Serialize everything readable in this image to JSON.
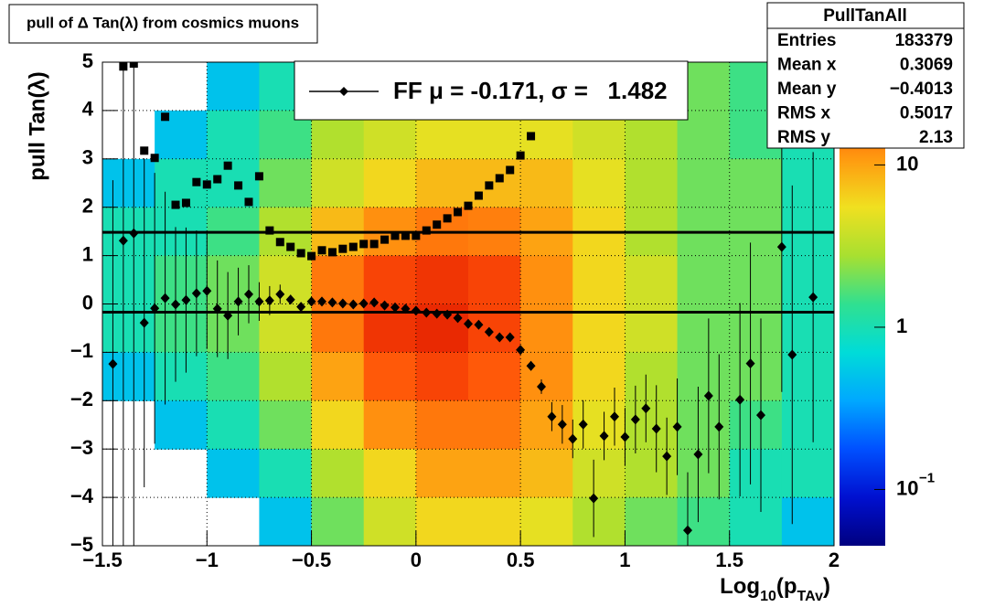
{
  "chart_data": {
    "type": "heatmap",
    "title": "pull of Δ Tan(λ) from cosmics muons",
    "ylabel": "pull Tan(λ)",
    "xlabel_parts": [
      {
        "text": "Log"
      },
      {
        "sub": "10"
      },
      {
        "text": "(p"
      },
      {
        "sub": "TAv"
      },
      {
        "text": ")"
      }
    ],
    "xlim": [
      -1.5,
      2
    ],
    "ylim": [
      -5,
      5
    ],
    "xticks": [
      {
        "value": -1.5,
        "label": "−1.5"
      },
      {
        "value": -1,
        "label": "−1"
      },
      {
        "value": -0.5,
        "label": "−0.5"
      },
      0,
      0.5,
      1,
      1.5,
      2
    ],
    "yticks": [
      {
        "value": -5,
        "label": "−5"
      },
      {
        "value": -4,
        "label": "−4"
      },
      {
        "value": -3,
        "label": "−3"
      },
      {
        "value": -2,
        "label": "−2"
      },
      {
        "value": -1,
        "label": "−1"
      },
      0,
      1,
      2,
      3,
      4,
      5
    ],
    "grid": true,
    "log_z": true,
    "zlim": [
      0.045,
      43
    ],
    "zticks": [
      {
        "value": 0.1,
        "label": "10",
        "exponent": "−1"
      },
      1,
      10
    ],
    "palette": [
      "#000080",
      "#0010d0",
      "#0050ff",
      "#00a8ff",
      "#00dcd8",
      "#30e090",
      "#a8e030",
      "#f0e020",
      "#ff9a10",
      "#ff5008",
      "#e01800"
    ],
    "xbins": [
      -1.5,
      -1.25,
      -1,
      -0.75,
      -0.5,
      -0.25,
      0,
      0.25,
      0.5,
      0.75,
      1,
      1.25,
      1.5,
      1.75,
      2
    ],
    "ybins": [
      5,
      4,
      3,
      2,
      1,
      0,
      -1,
      -2,
      -3,
      -4,
      -5
    ],
    "z": [
      [
        0,
        0,
        0.5,
        1,
        2,
        2,
        3,
        3,
        4,
        3,
        2,
        2,
        1.5,
        1
      ],
      [
        0,
        0.5,
        1,
        1.5,
        3,
        4,
        5,
        5,
        5,
        4,
        3,
        2,
        1.5,
        1
      ],
      [
        0.5,
        1,
        1,
        2,
        4,
        6,
        8,
        8,
        8,
        5,
        3,
        2,
        2,
        1
      ],
      [
        1,
        1,
        1.5,
        3,
        8,
        12,
        15,
        14,
        10,
        6,
        3,
        2,
        2,
        1
      ],
      [
        1,
        1.5,
        2,
        4,
        15,
        25,
        30,
        25,
        12,
        6,
        4,
        2,
        2,
        1
      ],
      [
        1,
        1.5,
        2,
        4,
        15,
        30,
        35,
        25,
        12,
        6,
        4,
        2,
        2,
        1
      ],
      [
        0.5,
        1,
        1.5,
        3,
        10,
        20,
        25,
        20,
        12,
        6,
        3,
        2,
        2,
        1
      ],
      [
        0,
        0.5,
        1,
        2,
        6,
        12,
        15,
        15,
        10,
        5,
        3,
        2,
        1.5,
        1
      ],
      [
        0,
        0,
        0.5,
        1,
        3,
        6,
        10,
        10,
        8,
        4,
        3,
        2,
        1,
        1
      ],
      [
        0,
        0,
        0,
        0.5,
        2,
        4,
        6,
        6,
        5,
        3,
        2,
        1.5,
        1,
        0.5
      ]
    ],
    "series": [
      {
        "name": "FF μ = -0.171, σ =   1.482",
        "marker": "diamond",
        "color": "#000000",
        "x": [
          -1.45,
          -1.4,
          -1.35,
          -1.3,
          -1.25,
          -1.2,
          -1.15,
          -1.1,
          -1.05,
          -1,
          -0.95,
          -0.9,
          -0.85,
          -0.8,
          -0.75,
          -0.7,
          -0.65,
          -0.6,
          -0.55,
          -0.5,
          -0.45,
          -0.4,
          -0.35,
          -0.3,
          -0.25,
          -0.2,
          -0.15,
          -0.1,
          -0.05,
          0,
          0.05,
          0.1,
          0.15,
          0.2,
          0.25,
          0.3,
          0.35,
          0.4,
          0.45,
          0.5,
          0.55,
          0.6,
          0.65,
          0.7,
          0.75,
          0.8,
          0.85,
          0.9,
          0.95,
          1,
          1.05,
          1.1,
          1.15,
          1.2,
          1.25,
          1.3,
          1.35,
          1.4,
          1.45,
          1.55,
          1.6,
          1.65,
          1.75,
          1.8,
          1.9
        ],
        "values": [
          -1.24,
          1.31,
          1.46,
          -0.39,
          -0.09,
          0.12,
          -0.01,
          0.08,
          0.22,
          0.27,
          -0.1,
          -0.24,
          0.05,
          0.2,
          0.05,
          0.07,
          0.2,
          0.09,
          -0.06,
          0.05,
          0.05,
          0.03,
          0.01,
          -0.01,
          0.01,
          0.03,
          -0.03,
          -0.07,
          -0.1,
          -0.14,
          -0.18,
          -0.2,
          -0.22,
          -0.29,
          -0.41,
          -0.43,
          -0.58,
          -0.69,
          -0.69,
          -0.95,
          -1.28,
          -1.71,
          -2.33,
          -2.49,
          -2.79,
          -2.49,
          -4.02,
          -2.73,
          -2.33,
          -2.75,
          -2.39,
          -2.16,
          -2.58,
          -3.15,
          -2.54,
          -4.68,
          -3.11,
          -1.9,
          -2.54,
          -1.98,
          -1.23,
          -2.3,
          1.18,
          -1.05,
          0.14
        ],
        "errors": [
          3.8,
          6.3,
          6.5,
          3.4,
          2.8,
          2.2,
          1.6,
          1.5,
          1.3,
          1.2,
          1.0,
          0.9,
          0.7,
          0.6,
          0.4,
          0.3,
          0.2,
          0.1,
          0.05,
          0.05,
          0.05,
          0.05,
          0.05,
          0.05,
          0.05,
          0.05,
          0.05,
          0.05,
          0.05,
          0.05,
          0.05,
          0.05,
          0.05,
          0.05,
          0.05,
          0.05,
          0.05,
          0.05,
          0.05,
          0.05,
          0.1,
          0.15,
          0.3,
          0.4,
          0.4,
          0.5,
          0.8,
          0.5,
          0.6,
          0.6,
          0.7,
          0.7,
          0.9,
          0.8,
          1.0,
          1.2,
          1.4,
          1.6,
          1.5,
          2.0,
          2.5,
          2.0,
          3.0,
          3.5,
          3.0
        ]
      },
      {
        "marker": "square",
        "color": "#000000",
        "x": [
          -1.4,
          -1.35,
          -1.3,
          -1.25,
          -1.2,
          -1.15,
          -1.1,
          -1.05,
          -1,
          -0.95,
          -0.9,
          -0.85,
          -0.8,
          -0.75,
          -0.7,
          -0.65,
          -0.6,
          -0.55,
          -0.5,
          -0.45,
          -0.4,
          -0.35,
          -0.3,
          -0.25,
          -0.2,
          -0.15,
          -0.1,
          -0.05,
          0,
          0.05,
          0.1,
          0.15,
          0.2,
          0.25,
          0.3,
          0.35,
          0.4,
          0.45,
          0.5,
          0.55
        ],
        "values": [
          4.91,
          4.97,
          3.17,
          3.02,
          3.87,
          2.05,
          2.09,
          2.52,
          2.47,
          2.58,
          2.86,
          2.45,
          2.11,
          2.64,
          1.52,
          1.28,
          1.18,
          1.05,
          0.99,
          1.11,
          1.07,
          1.14,
          1.18,
          1.24,
          1.24,
          1.33,
          1.41,
          1.41,
          1.41,
          1.52,
          1.64,
          1.77,
          1.9,
          2.03,
          2.24,
          2.45,
          2.6,
          2.77,
          3.07,
          3.47
        ]
      }
    ],
    "hlines": [
      -0.171,
      1.482
    ],
    "stats": {
      "title": "PullTanAll",
      "rows": [
        [
          "Entries",
          "183379"
        ],
        [
          "Mean x",
          "0.3069"
        ],
        [
          "Mean y",
          "−0.4013"
        ],
        [
          "RMS x",
          "0.5017"
        ],
        [
          "RMS y",
          "2.13"
        ]
      ]
    }
  }
}
